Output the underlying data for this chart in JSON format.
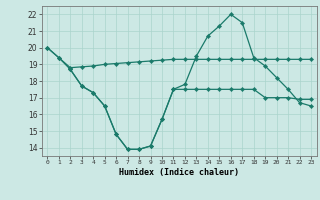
{
  "xlabel": "Humidex (Indice chaleur)",
  "ylabel": "",
  "bg_color": "#cce8e4",
  "grid_color": "#aad4cc",
  "line_color": "#1a7a6a",
  "xlim": [
    -0.5,
    23.5
  ],
  "ylim": [
    13.5,
    22.5
  ],
  "yticks": [
    14,
    15,
    16,
    17,
    18,
    19,
    20,
    21,
    22
  ],
  "xticks": [
    0,
    1,
    2,
    3,
    4,
    5,
    6,
    7,
    8,
    9,
    10,
    11,
    12,
    13,
    14,
    15,
    16,
    17,
    18,
    19,
    20,
    21,
    22,
    23
  ],
  "line1_x": [
    0,
    1,
    2,
    3,
    4,
    5,
    6,
    7,
    8,
    9,
    10,
    11,
    12,
    13,
    14,
    15,
    16,
    17,
    18,
    19,
    20,
    21,
    22,
    23
  ],
  "line1_y": [
    20.0,
    19.4,
    18.8,
    18.85,
    18.9,
    19.0,
    19.05,
    19.1,
    19.15,
    19.2,
    19.25,
    19.3,
    19.3,
    19.3,
    19.3,
    19.3,
    19.3,
    19.3,
    19.3,
    19.3,
    19.3,
    19.3,
    19.3,
    19.3
  ],
  "line2_x": [
    2,
    3,
    4,
    5,
    6,
    7,
    8,
    9,
    10,
    11,
    12,
    13,
    14,
    15,
    16,
    17,
    18,
    19,
    20,
    21,
    22,
    23
  ],
  "line2_y": [
    18.7,
    17.7,
    17.3,
    16.5,
    14.8,
    13.9,
    13.9,
    14.1,
    15.7,
    17.5,
    17.5,
    17.5,
    17.5,
    17.5,
    17.5,
    17.5,
    17.5,
    17.0,
    17.0,
    17.0,
    16.9,
    16.9
  ],
  "line3_x": [
    0,
    1,
    2,
    3,
    4,
    5,
    6,
    7,
    8,
    9,
    10,
    11,
    12,
    13,
    14,
    15,
    16,
    17,
    18,
    19,
    20,
    21,
    22,
    23
  ],
  "line3_y": [
    20.0,
    19.4,
    18.7,
    17.7,
    17.3,
    16.5,
    14.8,
    13.9,
    13.9,
    14.1,
    15.7,
    17.5,
    17.8,
    19.5,
    20.7,
    21.3,
    22.0,
    21.5,
    19.4,
    18.9,
    18.2,
    17.5,
    16.7,
    16.5
  ]
}
